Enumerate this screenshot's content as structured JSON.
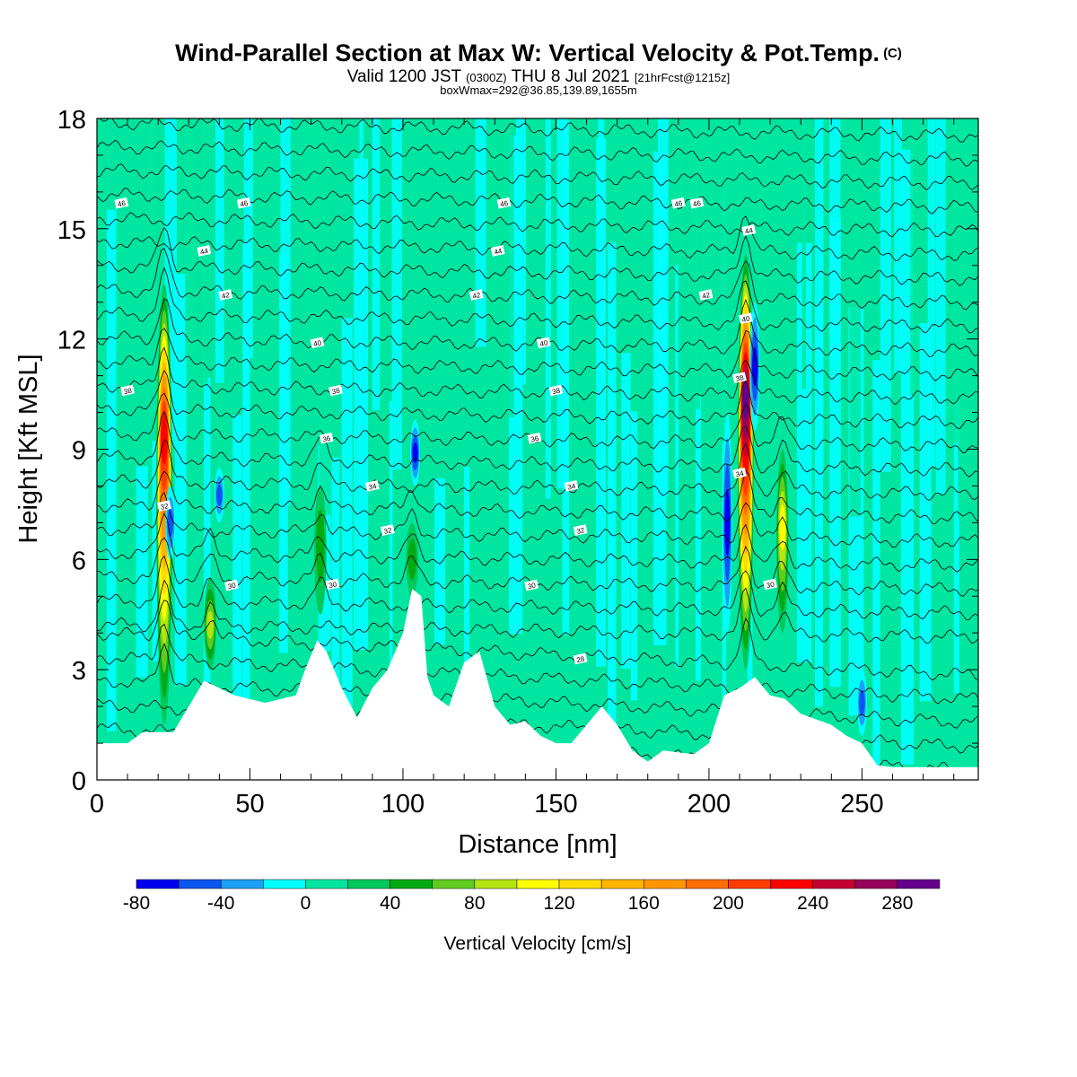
{
  "header": {
    "title_main": "Wind-Parallel Section at Max W: Vertical Velocity & Pot.Temp.",
    "title_mark": "(C)",
    "valid_prefix": "Valid 1200 JST",
    "valid_utc": "(0300Z)",
    "valid_date": "THU 8 Jul 2021",
    "forecast_info": "[21hrFcst@1215z]",
    "box_info": "boxWmax=292@36.85,139.89,1655m"
  },
  "chart_data": {
    "type": "heatmap",
    "xlabel": "Distance [nm]",
    "ylabel": "Height [Kft MSL]",
    "xlim": [
      0,
      288
    ],
    "ylim": [
      0,
      18
    ],
    "x_ticks": [
      "0",
      "50",
      "100",
      "150",
      "200",
      "250"
    ],
    "y_ticks": [
      "0",
      "3",
      "6",
      "9",
      "12",
      "15",
      "18"
    ],
    "colorbar": {
      "label": "Vertical Velocity [cm/s]",
      "min": -80,
      "step": 20,
      "tick_labels": [
        "-80",
        "-40",
        "0",
        "40",
        "80",
        "120",
        "160",
        "200",
        "240",
        "280"
      ],
      "colors": [
        "#0000f0",
        "#0a55f0",
        "#1ea0f5",
        "#00ffff",
        "#00e6a0",
        "#00c85a",
        "#00aa14",
        "#5fcc1e",
        "#b4e614",
        "#ffff00",
        "#ffdc00",
        "#ffb400",
        "#ff9600",
        "#ff6e00",
        "#ff3c00",
        "#ff0000",
        "#c80032",
        "#96005a",
        "#64008c"
      ]
    },
    "terrain_top_kft": [
      [
        0,
        1.0
      ],
      [
        10,
        1.0
      ],
      [
        15,
        1.3
      ],
      [
        25,
        1.3
      ],
      [
        30,
        2.0
      ],
      [
        35,
        2.7
      ],
      [
        40,
        2.5
      ],
      [
        45,
        2.3
      ],
      [
        55,
        2.1
      ],
      [
        65,
        2.3
      ],
      [
        68,
        3.0
      ],
      [
        72,
        3.8
      ],
      [
        75,
        3.5
      ],
      [
        80,
        2.5
      ],
      [
        85,
        1.7
      ],
      [
        90,
        2.5
      ],
      [
        95,
        3.0
      ],
      [
        100,
        4.0
      ],
      [
        103,
        5.2
      ],
      [
        106,
        5.0
      ],
      [
        108,
        2.8
      ],
      [
        110,
        2.3
      ],
      [
        115,
        2.0
      ],
      [
        120,
        3.2
      ],
      [
        125,
        3.5
      ],
      [
        130,
        2.0
      ],
      [
        135,
        1.5
      ],
      [
        140,
        1.6
      ],
      [
        145,
        1.2
      ],
      [
        150,
        1.0
      ],
      [
        155,
        1.0
      ],
      [
        160,
        1.5
      ],
      [
        165,
        2.0
      ],
      [
        170,
        1.5
      ],
      [
        175,
        0.8
      ],
      [
        180,
        0.5
      ],
      [
        185,
        0.8
      ],
      [
        195,
        0.7
      ],
      [
        200,
        1.0
      ],
      [
        205,
        2.3
      ],
      [
        210,
        2.5
      ],
      [
        215,
        2.8
      ],
      [
        220,
        2.3
      ],
      [
        225,
        2.2
      ],
      [
        230,
        1.8
      ],
      [
        240,
        1.5
      ],
      [
        245,
        1.2
      ],
      [
        250,
        1.0
      ],
      [
        255,
        0.4
      ],
      [
        260,
        0.35
      ],
      [
        288,
        0.35
      ]
    ],
    "updrafts": [
      {
        "x": 22,
        "base_kft": 1.5,
        "top_kft": 13.5,
        "peak_kft": 9.5,
        "w_max": 240
      },
      {
        "x": 37,
        "base_kft": 3.0,
        "top_kft": 5.5,
        "peak_kft": 4.2,
        "w_max": 100
      },
      {
        "x": 73,
        "base_kft": 4.5,
        "top_kft": 8.0,
        "peak_kft": 6.5,
        "w_max": 60
      },
      {
        "x": 103,
        "base_kft": 5.0,
        "top_kft": 7.0,
        "peak_kft": 6.0,
        "w_max": 60
      },
      {
        "x": 212,
        "base_kft": 3.0,
        "top_kft": 14.3,
        "peak_kft": 10.5,
        "w_max": 292
      },
      {
        "x": 224,
        "base_kft": 4.0,
        "top_kft": 9.0,
        "peak_kft": 7.0,
        "w_max": 120
      }
    ],
    "downdrafts": [
      {
        "x": 24,
        "bottom_kft": 6.0,
        "top_kft": 8.0,
        "w_min": -60
      },
      {
        "x": 40,
        "bottom_kft": 7.0,
        "top_kft": 8.5,
        "w_min": -60
      },
      {
        "x": 104,
        "bottom_kft": 8.0,
        "top_kft": 9.8,
        "w_min": -70
      },
      {
        "x": 206,
        "bottom_kft": 4.0,
        "top_kft": 10.0,
        "w_min": -80
      },
      {
        "x": 215,
        "bottom_kft": 9.5,
        "top_kft": 13.0,
        "w_min": -80
      },
      {
        "x": 250,
        "bottom_kft": 1.2,
        "top_kft": 3.0,
        "w_min": -60
      }
    ],
    "theta_contours": [
      {
        "level": "28",
        "base_kft": 3.3,
        "labels_x": [
          158
        ]
      },
      {
        "level": "30",
        "base_kft": 5.3,
        "labels_x": [
          44,
          77,
          142,
          220
        ]
      },
      {
        "level": "32",
        "base_kft": 6.8,
        "labels_x": [
          22,
          95,
          158
        ]
      },
      {
        "level": "34",
        "base_kft": 8.0,
        "labels_x": [
          90,
          155,
          210
        ]
      },
      {
        "level": "36",
        "base_kft": 9.3,
        "labels_x": [
          75,
          143
        ]
      },
      {
        "level": "38",
        "base_kft": 10.6,
        "labels_x": [
          10,
          78,
          150,
          210
        ]
      },
      {
        "level": "40",
        "base_kft": 11.9,
        "labels_x": [
          72,
          146,
          212
        ]
      },
      {
        "level": "42",
        "base_kft": 13.2,
        "labels_x": [
          42,
          124,
          199
        ]
      },
      {
        "level": "44",
        "base_kft": 14.4,
        "labels_x": [
          35,
          131,
          213
        ]
      },
      {
        "level": "46",
        "base_kft": 15.7,
        "labels_x": [
          8,
          48,
          133,
          190,
          196
        ]
      }
    ]
  }
}
